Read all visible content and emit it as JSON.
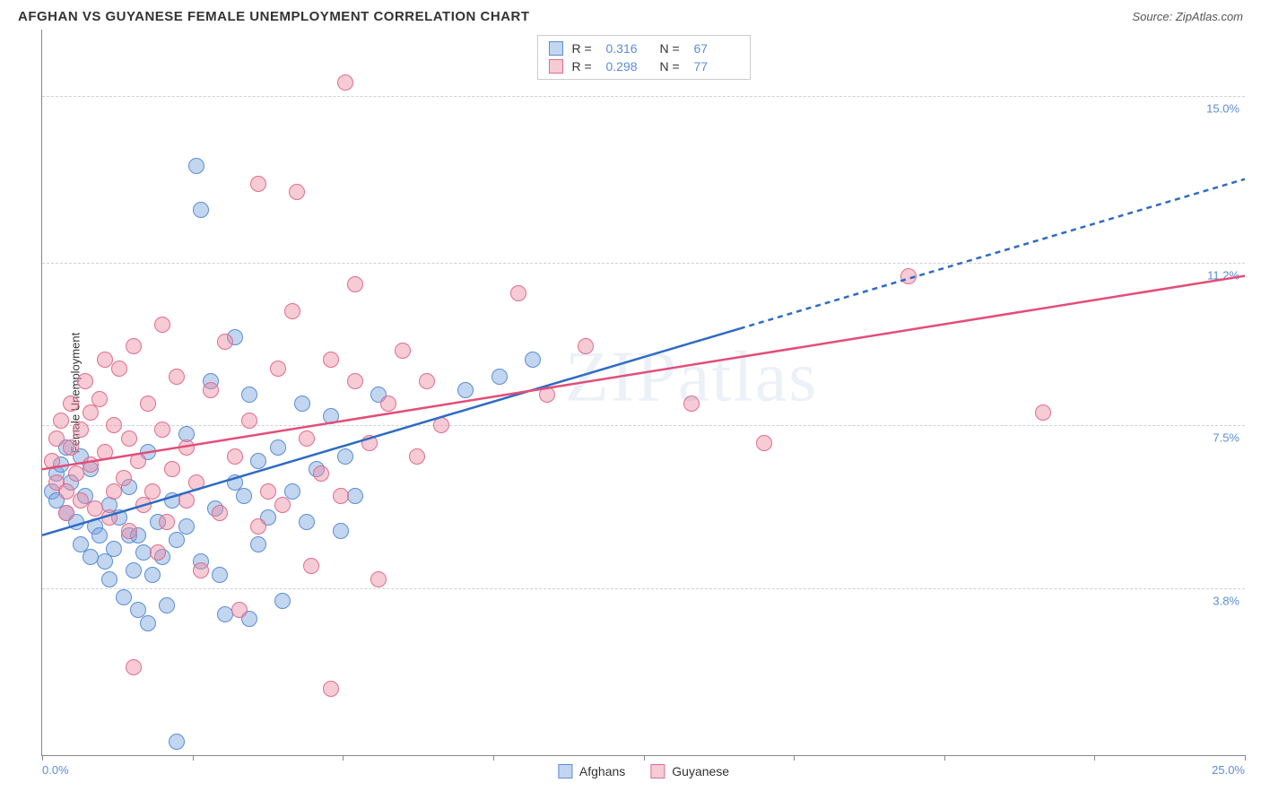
{
  "title": "AFGHAN VS GUYANESE FEMALE UNEMPLOYMENT CORRELATION CHART",
  "source": "Source: ZipAtlas.com",
  "watermark": "ZIPatlas",
  "ylabel": "Female Unemployment",
  "chart": {
    "type": "scatter",
    "xlim": [
      0,
      25
    ],
    "ylim": [
      0,
      16.5
    ],
    "ygrid": [
      {
        "v": 3.8,
        "label": "3.8%"
      },
      {
        "v": 7.5,
        "label": "7.5%"
      },
      {
        "v": 11.2,
        "label": "11.2%"
      },
      {
        "v": 15.0,
        "label": "15.0%"
      }
    ],
    "xticks": [
      0,
      3.125,
      6.25,
      9.375,
      12.5,
      15.625,
      18.75,
      21.875,
      25
    ],
    "xlabels": {
      "0": "0.0%",
      "25": "25.0%"
    },
    "marker_radius": 9,
    "marker_border_width": 1.5,
    "background_color": "#ffffff",
    "grid_color": "#d0d0d0",
    "axis_color": "#888888"
  },
  "series": [
    {
      "id": "afghans",
      "label": "Afghans",
      "fill": "rgba(120,165,221,0.45)",
      "stroke": "#5b8dd6",
      "line_color": "#2e6bc4",
      "line_width": 2.5,
      "R": "0.316",
      "N": "67",
      "trend_solid": {
        "x1": 0,
        "y1": 5.0,
        "x2": 14.5,
        "y2": 9.7
      },
      "trend_dashed": {
        "x1": 14.5,
        "y1": 9.7,
        "x2": 25,
        "y2": 13.1
      },
      "points": [
        [
          0.2,
          6.0
        ],
        [
          0.3,
          6.4
        ],
        [
          0.3,
          5.8
        ],
        [
          0.4,
          6.6
        ],
        [
          0.5,
          5.5
        ],
        [
          0.5,
          7.0
        ],
        [
          0.6,
          6.2
        ],
        [
          0.7,
          5.3
        ],
        [
          0.8,
          6.8
        ],
        [
          0.8,
          4.8
        ],
        [
          0.9,
          5.9
        ],
        [
          1.0,
          6.5
        ],
        [
          1.0,
          4.5
        ],
        [
          1.1,
          5.2
        ],
        [
          1.2,
          5.0
        ],
        [
          1.3,
          4.4
        ],
        [
          1.4,
          5.7
        ],
        [
          1.4,
          4.0
        ],
        [
          1.5,
          4.7
        ],
        [
          1.6,
          5.4
        ],
        [
          1.7,
          3.6
        ],
        [
          1.8,
          5.0
        ],
        [
          1.8,
          6.1
        ],
        [
          1.9,
          4.2
        ],
        [
          2.0,
          5.0
        ],
        [
          2.0,
          3.3
        ],
        [
          2.1,
          4.6
        ],
        [
          2.2,
          6.9
        ],
        [
          2.2,
          3.0
        ],
        [
          2.3,
          4.1
        ],
        [
          2.4,
          5.3
        ],
        [
          2.5,
          4.5
        ],
        [
          2.6,
          3.4
        ],
        [
          2.7,
          5.8
        ],
        [
          2.8,
          4.9
        ],
        [
          2.8,
          0.3
        ],
        [
          3.0,
          5.2
        ],
        [
          3.0,
          7.3
        ],
        [
          3.2,
          13.4
        ],
        [
          3.3,
          12.4
        ],
        [
          3.3,
          4.4
        ],
        [
          3.5,
          8.5
        ],
        [
          3.6,
          5.6
        ],
        [
          3.7,
          4.1
        ],
        [
          3.8,
          3.2
        ],
        [
          4.0,
          6.2
        ],
        [
          4.0,
          9.5
        ],
        [
          4.2,
          5.9
        ],
        [
          4.3,
          3.1
        ],
        [
          4.3,
          8.2
        ],
        [
          4.5,
          6.7
        ],
        [
          4.5,
          4.8
        ],
        [
          4.7,
          5.4
        ],
        [
          4.9,
          7.0
        ],
        [
          5.0,
          3.5
        ],
        [
          5.2,
          6.0
        ],
        [
          5.4,
          8.0
        ],
        [
          5.5,
          5.3
        ],
        [
          5.7,
          6.5
        ],
        [
          6.0,
          7.7
        ],
        [
          6.2,
          5.1
        ],
        [
          6.3,
          6.8
        ],
        [
          6.5,
          5.9
        ],
        [
          7.0,
          8.2
        ],
        [
          8.8,
          8.3
        ],
        [
          9.5,
          8.6
        ],
        [
          10.2,
          9.0
        ]
      ]
    },
    {
      "id": "guyanese",
      "label": "Guyanese",
      "fill": "rgba(235,140,165,0.45)",
      "stroke": "#e06d8c",
      "line_color": "#e44d77",
      "line_width": 2.5,
      "R": "0.298",
      "N": "77",
      "trend_solid": {
        "x1": 0,
        "y1": 6.5,
        "x2": 25,
        "y2": 10.9
      },
      "trend_dashed": null,
      "points": [
        [
          0.2,
          6.7
        ],
        [
          0.3,
          7.2
        ],
        [
          0.3,
          6.2
        ],
        [
          0.4,
          7.6
        ],
        [
          0.5,
          6.0
        ],
        [
          0.5,
          5.5
        ],
        [
          0.6,
          7.0
        ],
        [
          0.6,
          8.0
        ],
        [
          0.7,
          6.4
        ],
        [
          0.8,
          5.8
        ],
        [
          0.8,
          7.4
        ],
        [
          0.9,
          8.5
        ],
        [
          1.0,
          6.6
        ],
        [
          1.0,
          7.8
        ],
        [
          1.1,
          5.6
        ],
        [
          1.2,
          8.1
        ],
        [
          1.3,
          6.9
        ],
        [
          1.3,
          9.0
        ],
        [
          1.4,
          5.4
        ],
        [
          1.5,
          7.5
        ],
        [
          1.5,
          6.0
        ],
        [
          1.6,
          8.8
        ],
        [
          1.7,
          6.3
        ],
        [
          1.8,
          5.1
        ],
        [
          1.8,
          7.2
        ],
        [
          1.9,
          9.3
        ],
        [
          2.0,
          6.7
        ],
        [
          2.1,
          5.7
        ],
        [
          2.2,
          8.0
        ],
        [
          2.3,
          6.0
        ],
        [
          2.4,
          4.6
        ],
        [
          2.5,
          7.4
        ],
        [
          2.5,
          9.8
        ],
        [
          2.6,
          5.3
        ],
        [
          2.7,
          6.5
        ],
        [
          2.8,
          8.6
        ],
        [
          3.0,
          5.8
        ],
        [
          3.0,
          7.0
        ],
        [
          3.2,
          6.2
        ],
        [
          3.3,
          4.2
        ],
        [
          3.5,
          8.3
        ],
        [
          3.7,
          5.5
        ],
        [
          3.8,
          9.4
        ],
        [
          4.0,
          6.8
        ],
        [
          4.1,
          3.3
        ],
        [
          4.3,
          7.6
        ],
        [
          4.5,
          5.2
        ],
        [
          4.5,
          13.0
        ],
        [
          4.7,
          6.0
        ],
        [
          4.9,
          8.8
        ],
        [
          5.0,
          5.7
        ],
        [
          5.2,
          10.1
        ],
        [
          5.3,
          12.8
        ],
        [
          5.5,
          7.2
        ],
        [
          5.6,
          4.3
        ],
        [
          5.8,
          6.4
        ],
        [
          6.0,
          9.0
        ],
        [
          6.0,
          1.5
        ],
        [
          6.2,
          5.9
        ],
        [
          6.3,
          15.3
        ],
        [
          6.5,
          8.5
        ],
        [
          6.5,
          10.7
        ],
        [
          6.8,
          7.1
        ],
        [
          7.0,
          4.0
        ],
        [
          7.2,
          8.0
        ],
        [
          7.5,
          9.2
        ],
        [
          7.8,
          6.8
        ],
        [
          8.0,
          8.5
        ],
        [
          8.3,
          7.5
        ],
        [
          9.9,
          10.5
        ],
        [
          10.5,
          8.2
        ],
        [
          11.3,
          9.3
        ],
        [
          13.5,
          8.0
        ],
        [
          15.0,
          7.1
        ],
        [
          18.0,
          10.9
        ],
        [
          20.8,
          7.8
        ],
        [
          1.9,
          2.0
        ]
      ]
    }
  ],
  "legend_top": {
    "R_label": "R =",
    "N_label": "N ="
  }
}
